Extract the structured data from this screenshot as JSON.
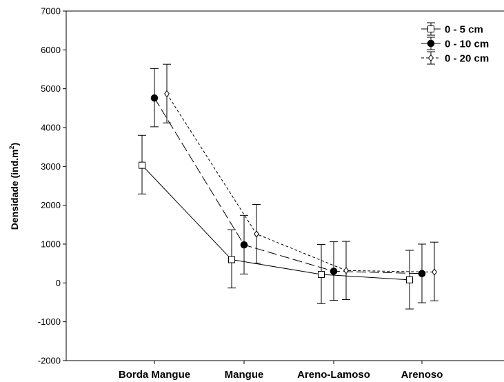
{
  "chart_data": {
    "type": "line",
    "categories": [
      "Borda Mangue",
      "Mangue",
      "Areno-Lamoso",
      "Arenoso"
    ],
    "ylabel": "Densidade (ind.m",
    "ylabel_sup": "2",
    "ylabel_close": ")",
    "ylim": [
      -2000,
      7000
    ],
    "yticks": [
      -2000,
      -1000,
      0,
      1000,
      2000,
      3000,
      4000,
      5000,
      6000,
      7000
    ],
    "ytick_labels": [
      "-2000",
      "-1000",
      "0",
      "1000",
      "2000",
      "3000",
      "4000",
      "5000",
      "6000",
      "7000"
    ],
    "grid": false,
    "legend_position": "top-right",
    "series": [
      {
        "name": "0 - 5 cm",
        "marker": "open-square",
        "line_style": "solid",
        "values": [
          3030,
          600,
          220,
          80
        ],
        "error_low": [
          2290,
          -130,
          -530,
          -670
        ],
        "error_high": [
          3800,
          1370,
          990,
          840
        ]
      },
      {
        "name": "0 - 10 cm",
        "marker": "filled-circle",
        "line_style": "long-dash",
        "values": [
          4760,
          980,
          300,
          240
        ],
        "error_low": [
          4020,
          230,
          -450,
          -510
        ],
        "error_high": [
          5520,
          1740,
          1060,
          1000
        ]
      },
      {
        "name": "0 - 20 cm",
        "marker": "open-diamond",
        "line_style": "short-dash",
        "values": [
          4870,
          1260,
          320,
          280
        ],
        "error_low": [
          4120,
          510,
          -430,
          -460
        ],
        "error_high": [
          5630,
          2020,
          1070,
          1050
        ]
      }
    ]
  }
}
